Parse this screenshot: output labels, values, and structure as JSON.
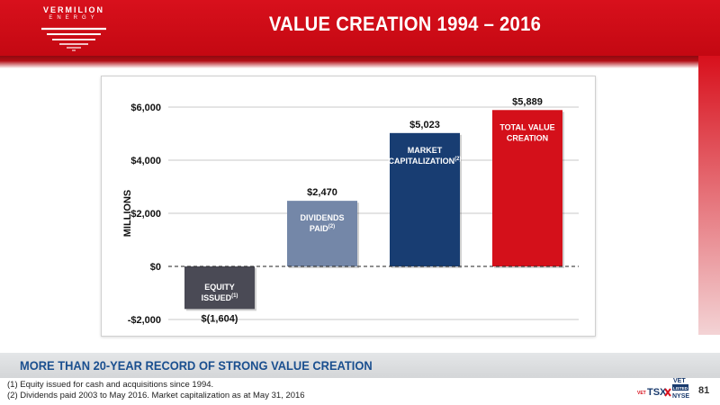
{
  "brand": {
    "name": "VERMILION",
    "subname": "ENERGY"
  },
  "title": "VALUE CREATION 1994 – 2016",
  "subtitle_band": "MORE THAN 20-YEAR RECORD OF STRONG VALUE CREATION",
  "footnotes": [
    "(1)  Equity issued for cash and acquisitions since 1994.",
    "(2)  Dividends paid 2003 to May 2016.  Market capitalization as at May 31, 2016"
  ],
  "exchange": {
    "prefix": "VET",
    "name": "TSX",
    "listing_top": "VET",
    "listing_box": "LISTED",
    "listing_bottom": "NYSE"
  },
  "page_number": "81",
  "colors": {
    "brand_red": "#d8101c",
    "band_text": "#1a4f8f"
  },
  "chart_data": {
    "type": "bar",
    "ylabel": "MILLIONS",
    "ylim": [
      -2000,
      6000
    ],
    "yticks": [
      -2000,
      0,
      2000,
      4000,
      6000
    ],
    "ytick_labels": [
      "-$2,000",
      "$0",
      "$2,000",
      "$4,000",
      "$6,000"
    ],
    "grid": true,
    "zero_line": "dashed",
    "bars": [
      {
        "value": -1604,
        "value_label": "$(1,604)",
        "inner_label": [
          "EQUITY",
          "ISSUED"
        ],
        "sup": "(1)",
        "color": "#4a4a55"
      },
      {
        "value": 2470,
        "value_label": "$2,470",
        "inner_label": [
          "DIVIDENDS",
          "PAID"
        ],
        "sup": "(2)",
        "color": "#7487a8"
      },
      {
        "value": 5023,
        "value_label": "$5,023",
        "inner_label": [
          "MARKET",
          "CAPITALIZATION"
        ],
        "sup": "(2)",
        "color": "#183d72"
      },
      {
        "value": 5889,
        "value_label": "$5,889",
        "inner_label": [
          "TOTAL VALUE",
          "CREATION"
        ],
        "sup": "",
        "color": "#d4101a"
      }
    ]
  }
}
